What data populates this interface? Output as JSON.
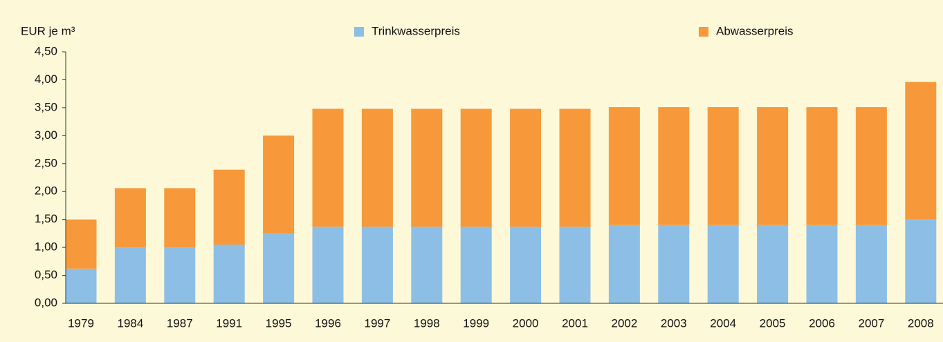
{
  "chart_data": {
    "type": "stacked_bar",
    "y_label": "EUR je m³",
    "categories": [
      "1979",
      "1984",
      "1987",
      "1991",
      "1995",
      "1996",
      "1997",
      "1998",
      "1999",
      "2000",
      "2001",
      "2002",
      "2003",
      "2004",
      "2005",
      "2006",
      "2007",
      "2008"
    ],
    "series": [
      {
        "name": "Trinkwasserpreis",
        "color": "#8dbfe6",
        "values": [
          0.62,
          1.0,
          1.0,
          1.05,
          1.25,
          1.37,
          1.37,
          1.37,
          1.37,
          1.37,
          1.37,
          1.4,
          1.4,
          1.4,
          1.4,
          1.4,
          1.4,
          1.5
        ]
      },
      {
        "name": "Abwasserpreis",
        "color": "#f7993a",
        "values": [
          0.88,
          1.06,
          1.06,
          1.34,
          1.75,
          2.11,
          2.11,
          2.11,
          2.11,
          2.11,
          2.11,
          2.11,
          2.11,
          2.11,
          2.11,
          2.11,
          2.11,
          2.46
        ]
      }
    ],
    "ylim": [
      0,
      4.5
    ],
    "yticks": [
      {
        "value": 0,
        "label": "0,00"
      },
      {
        "value": 0.5,
        "label": "0,50"
      },
      {
        "value": 1,
        "label": "1,00"
      },
      {
        "value": 1.5,
        "label": "1,50"
      },
      {
        "value": 2,
        "label": "2,00"
      },
      {
        "value": 2.5,
        "label": "2,50"
      },
      {
        "value": 3,
        "label": "3,00"
      },
      {
        "value": 3.5,
        "label": "3,50"
      },
      {
        "value": 4,
        "label": "4,00"
      },
      {
        "value": 4.5,
        "label": "4,50"
      }
    ],
    "legend": "top"
  }
}
